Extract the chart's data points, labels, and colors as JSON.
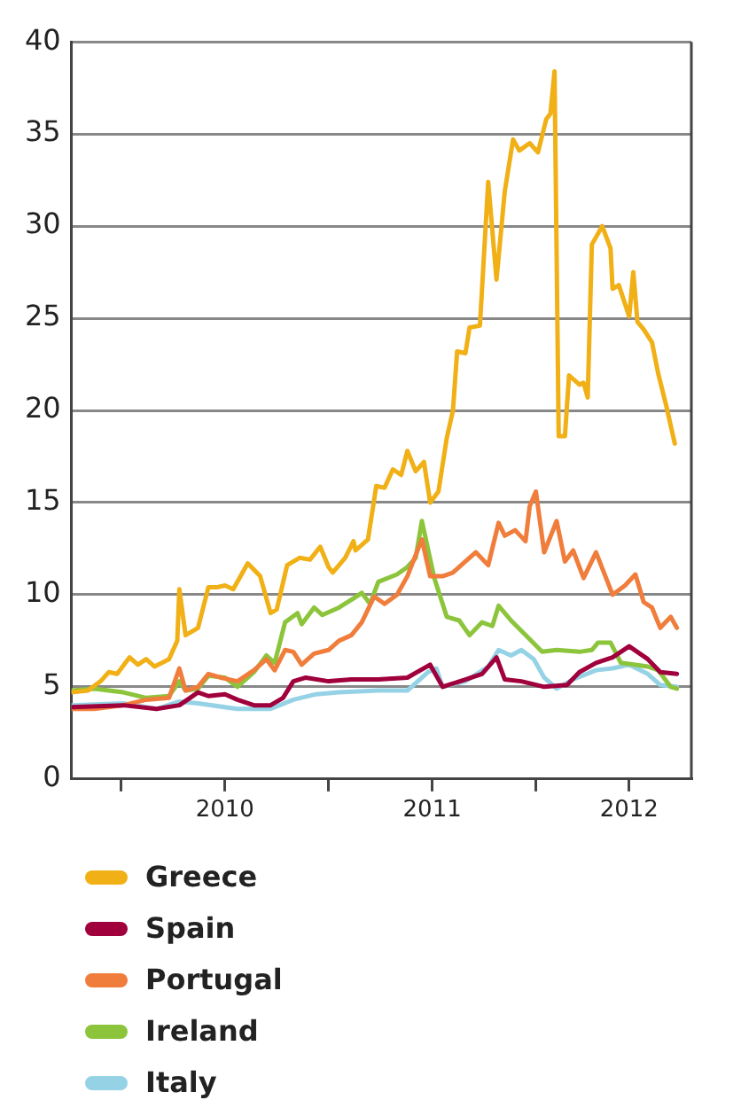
{
  "chart_data": {
    "type": "line",
    "xlim": [
      2009.76,
      2012.75
    ],
    "ylim": [
      0,
      40
    ],
    "yticks": [
      0,
      5,
      10,
      15,
      20,
      25,
      30,
      35,
      40
    ],
    "xticks": [
      {
        "value": 2010,
        "label": null
      },
      {
        "value": 2010.5,
        "label": "2010"
      },
      {
        "value": 2011,
        "label": null
      },
      {
        "value": 2011.5,
        "label": "2011"
      },
      {
        "value": 2012,
        "label": null
      },
      {
        "value": 2012.45,
        "label": "2012"
      }
    ],
    "grid": "y",
    "legend": "bottom",
    "marker": "none",
    "line_style": "solid",
    "series": [
      {
        "name": "Greece",
        "color": "#f0b016",
        "x": [
          2009.76,
          2009.84,
          2009.9,
          2009.94,
          2009.98,
          2010.04,
          2010.08,
          2010.12,
          2010.16,
          2010.23,
          2010.27,
          2010.28,
          2010.31,
          2010.37,
          2010.42,
          2010.46,
          2010.5,
          2010.54,
          2010.61,
          2010.67,
          2010.72,
          2010.75,
          2010.8,
          2010.86,
          2010.91,
          2010.96,
          2011.0,
          2011.02,
          2011.08,
          2011.12,
          2011.13,
          2011.19,
          2011.23,
          2011.27,
          2011.31,
          2011.35,
          2011.38,
          2011.42,
          2011.46,
          2011.49,
          2011.53,
          2011.57,
          2011.6,
          2011.62,
          2011.66,
          2011.68,
          2011.73,
          2011.77,
          2011.81,
          2011.85,
          2011.89,
          2011.92,
          2011.97,
          2012.01,
          2012.05,
          2012.07,
          2012.09,
          2012.11,
          2012.14,
          2012.16,
          2012.21,
          2012.23,
          2012.25,
          2012.27,
          2012.32,
          2012.36,
          2012.37,
          2012.4,
          2012.45,
          2012.47,
          2012.49,
          2012.52,
          2012.56,
          2012.59,
          2012.63,
          2012.67
        ],
        "values": [
          4.7,
          4.8,
          5.3,
          5.8,
          5.7,
          6.6,
          6.2,
          6.5,
          6.1,
          6.5,
          7.5,
          10.3,
          7.8,
          8.2,
          10.4,
          10.4,
          10.5,
          10.3,
          11.7,
          11.0,
          9.0,
          9.2,
          11.6,
          12.0,
          11.9,
          12.6,
          11.5,
          11.2,
          12.0,
          12.9,
          12.4,
          13.0,
          15.9,
          15.8,
          16.8,
          16.5,
          17.8,
          16.7,
          17.2,
          15.0,
          15.6,
          18.5,
          20.0,
          23.2,
          23.1,
          24.5,
          24.6,
          32.4,
          27.1,
          31.9,
          34.7,
          34.1,
          34.5,
          34.0,
          35.8,
          36.1,
          38.4,
          18.6,
          18.6,
          21.9,
          21.4,
          21.5,
          20.7,
          29.0,
          30.0,
          28.8,
          26.6,
          26.8,
          25.1,
          27.5,
          24.8,
          24.4,
          23.7,
          22.0,
          20.2,
          18.2
        ]
      },
      {
        "name": "Spain",
        "color": "#a0003c",
        "x": [
          2009.76,
          2010.01,
          2010.17,
          2010.28,
          2010.37,
          2010.42,
          2010.5,
          2010.56,
          2010.64,
          2010.72,
          2010.78,
          2010.83,
          2010.89,
          2011.0,
          2011.11,
          2011.24,
          2011.38,
          2011.49,
          2011.55,
          2011.66,
          2011.74,
          2011.81,
          2011.85,
          2011.93,
          2012.04,
          2012.15,
          2012.21,
          2012.29,
          2012.37,
          2012.45,
          2012.54,
          2012.6,
          2012.68
        ],
        "values": [
          3.9,
          4.0,
          3.8,
          4.0,
          4.7,
          4.5,
          4.6,
          4.3,
          4.0,
          4.0,
          4.4,
          5.3,
          5.5,
          5.3,
          5.4,
          5.4,
          5.5,
          6.2,
          5.0,
          5.4,
          5.7,
          6.6,
          5.4,
          5.3,
          5.0,
          5.1,
          5.8,
          6.3,
          6.6,
          7.2,
          6.5,
          5.8,
          5.7
        ]
      },
      {
        "name": "Portugal",
        "color": "#f07d3c",
        "x": [
          2009.76,
          2009.87,
          2010.01,
          2010.12,
          2010.23,
          2010.28,
          2010.31,
          2010.37,
          2010.42,
          2010.48,
          2010.56,
          2010.64,
          2010.7,
          2010.74,
          2010.79,
          2010.83,
          2010.87,
          2010.93,
          2011.0,
          2011.05,
          2011.11,
          2011.16,
          2011.22,
          2011.27,
          2011.33,
          2011.38,
          2011.45,
          2011.49,
          2011.55,
          2011.6,
          2011.66,
          2011.71,
          2011.77,
          2011.82,
          2011.85,
          2011.9,
          2011.95,
          2011.97,
          2012.0,
          2012.04,
          2012.1,
          2012.14,
          2012.18,
          2012.23,
          2012.29,
          2012.37,
          2012.43,
          2012.48,
          2012.52,
          2012.56,
          2012.6,
          2012.65,
          2012.68
        ],
        "values": [
          3.8,
          3.8,
          4.0,
          4.3,
          4.4,
          6.0,
          4.8,
          5.0,
          5.7,
          5.5,
          5.3,
          5.9,
          6.5,
          5.9,
          7.0,
          6.9,
          6.2,
          6.8,
          7.0,
          7.5,
          7.8,
          8.5,
          9.9,
          9.5,
          10.0,
          11.0,
          13.0,
          11.0,
          11.0,
          11.2,
          11.8,
          12.3,
          11.6,
          13.9,
          13.2,
          13.5,
          12.9,
          14.8,
          15.6,
          12.3,
          14.0,
          11.8,
          12.4,
          10.9,
          12.3,
          10.0,
          10.5,
          11.1,
          9.6,
          9.3,
          8.2,
          8.8,
          8.2
        ]
      },
      {
        "name": "Ireland",
        "color": "#8cc43c",
        "x": [
          2009.76,
          2009.87,
          2010.01,
          2010.12,
          2010.23,
          2010.28,
          2010.31,
          2010.37,
          2010.42,
          2010.5,
          2010.56,
          2010.64,
          2010.7,
          2010.74,
          2010.79,
          2010.85,
          2010.87,
          2010.93,
          2010.97,
          2011.05,
          2011.12,
          2011.16,
          2011.2,
          2011.24,
          2011.33,
          2011.38,
          2011.42,
          2011.45,
          2011.51,
          2011.57,
          2011.63,
          2011.68,
          2011.74,
          2011.79,
          2011.82,
          2011.88,
          2011.96,
          2012.03,
          2012.1,
          2012.21,
          2012.27,
          2012.3,
          2012.36,
          2012.41,
          2012.48,
          2012.54,
          2012.59,
          2012.65,
          2012.68
        ],
        "values": [
          4.8,
          4.9,
          4.7,
          4.4,
          4.5,
          5.3,
          4.8,
          4.9,
          5.6,
          5.5,
          5.0,
          5.8,
          6.7,
          6.3,
          8.5,
          9.0,
          8.4,
          9.3,
          8.9,
          9.3,
          9.8,
          10.1,
          9.5,
          10.7,
          11.1,
          11.5,
          12.0,
          14.0,
          10.9,
          8.8,
          8.6,
          7.8,
          8.5,
          8.3,
          9.4,
          8.6,
          7.7,
          6.9,
          7.0,
          6.9,
          7.0,
          7.4,
          7.4,
          6.3,
          6.2,
          6.1,
          5.9,
          5.0,
          4.9
        ]
      },
      {
        "name": "Italy",
        "color": "#96d2e6",
        "x": [
          2009.76,
          2010.01,
          2010.17,
          2010.28,
          2010.37,
          2010.56,
          2010.72,
          2010.83,
          2010.94,
          2011.05,
          2011.24,
          2011.38,
          2011.48,
          2011.52,
          2011.55,
          2011.66,
          2011.77,
          2011.82,
          2011.88,
          2011.93,
          2011.99,
          2012.04,
          2012.1,
          2012.18,
          2012.29,
          2012.37,
          2012.45,
          2012.54,
          2012.6,
          2012.68
        ],
        "values": [
          4.0,
          4.1,
          3.8,
          4.2,
          4.1,
          3.8,
          3.8,
          4.3,
          4.6,
          4.7,
          4.8,
          4.8,
          5.8,
          6.0,
          5.0,
          5.3,
          6.1,
          7.0,
          6.7,
          7.0,
          6.5,
          5.5,
          4.9,
          5.4,
          5.9,
          6.0,
          6.2,
          5.7,
          5.1,
          5.0
        ]
      }
    ]
  }
}
